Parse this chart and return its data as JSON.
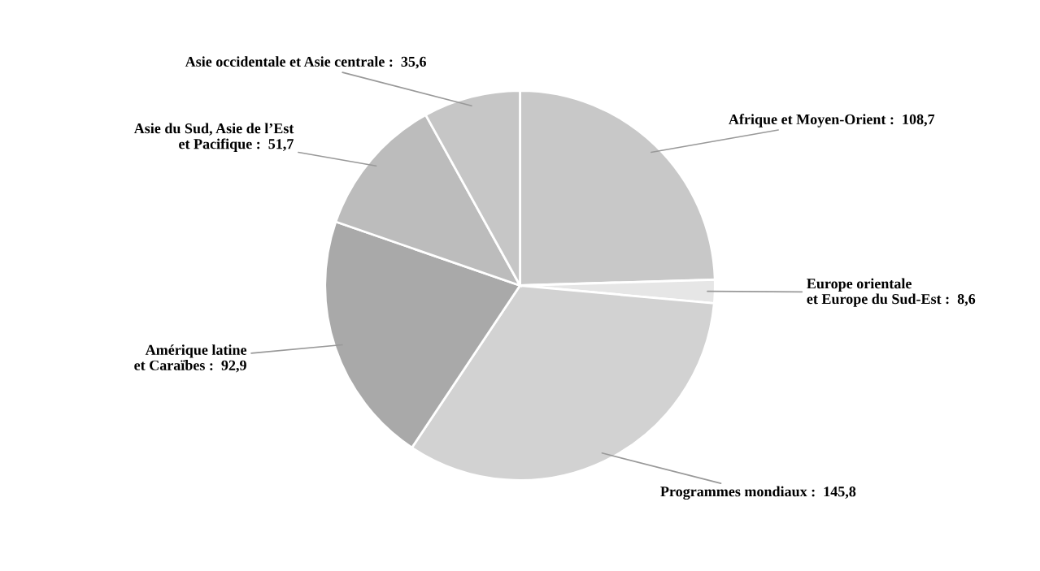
{
  "chart_data": {
    "type": "pie",
    "categories": [
      "Afrique et Moyen-Orient",
      "Europe orientale\net Europe du Sud-Est",
      "Programmes mondiaux",
      "Amérique latine\net Caraïbes",
      "Asie du Sud, Asie de l’Est\net Pacifique",
      "Asie occidentale et Asie centrale"
    ],
    "values": [
      108.7,
      8.6,
      145.8,
      92.9,
      51.7,
      35.6
    ],
    "value_labels": [
      "108,7",
      "8,6",
      "145,8",
      "92,9",
      "51,7",
      "35,6"
    ],
    "colors": [
      "#c8c8c8",
      "#e6e6e6",
      "#d2d2d2",
      "#a9a9a9",
      "#bcbcbc",
      "#c6c6c6"
    ],
    "legend": false
  }
}
